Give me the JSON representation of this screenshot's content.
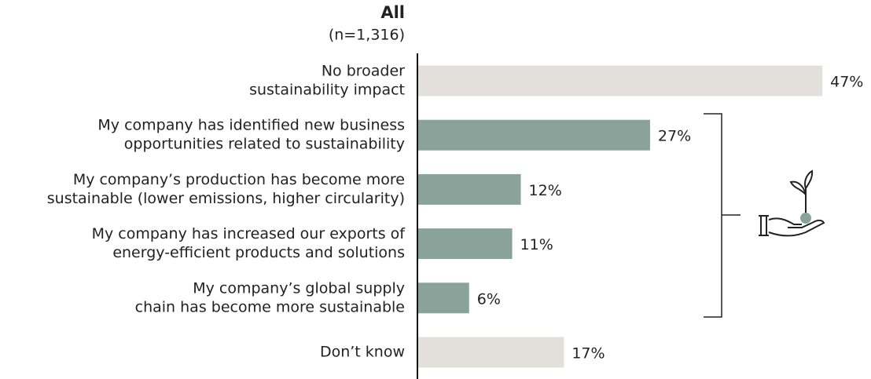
{
  "chart_data": {
    "type": "bar",
    "orientation": "horizontal",
    "title": "All",
    "subtitle": "(n=1,316)",
    "categories": [
      [
        "No broader",
        "sustainability impact"
      ],
      [
        "My company has identified new  business",
        "opportunities related to sustainability"
      ],
      [
        "My company’s production has become more",
        "sustainable (lower emissions, higher circularity)"
      ],
      [
        "My company has increased our exports of",
        "energy-efficient products and solutions"
      ],
      [
        "My company’s global supply",
        "chain has become more sustainable"
      ],
      [
        "Don’t know"
      ]
    ],
    "values": [
      47,
      27,
      12,
      11,
      6,
      17
    ],
    "value_labels": [
      "47%",
      "27%",
      "12%",
      "11%",
      "6%",
      "17%"
    ],
    "colors": [
      "#e3e0db",
      "#8aa39a",
      "#8aa39a",
      "#8aa39a",
      "#8aa39a",
      "#e3e0db"
    ],
    "xlim": [
      0,
      50
    ]
  }
}
